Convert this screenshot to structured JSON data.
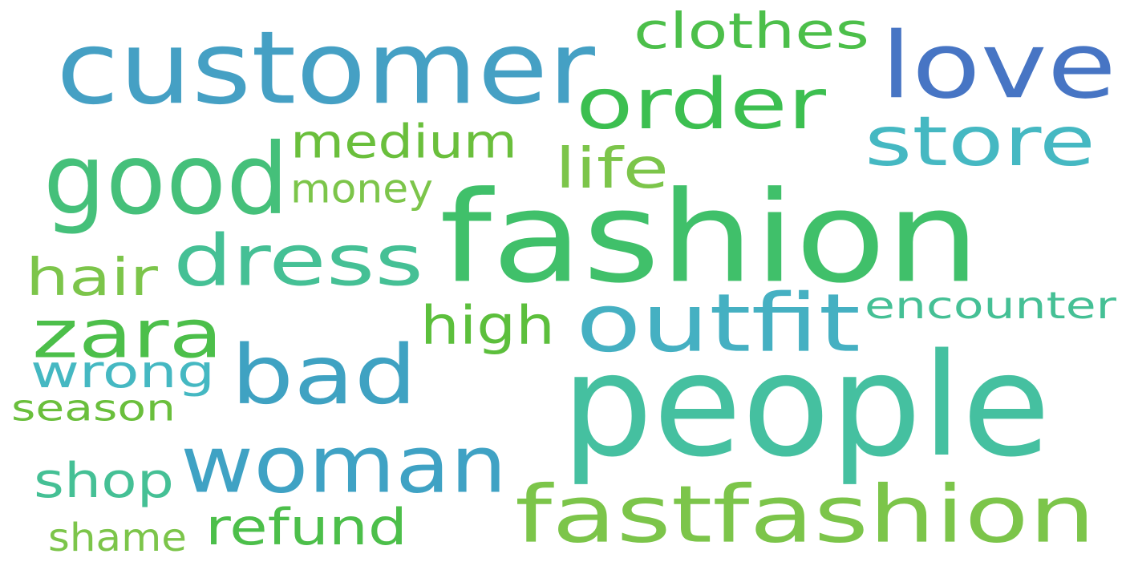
{
  "words": [
    {
      "text": "customer",
      "color": "#45a0c4"
    },
    {
      "text": "love",
      "color": "#4775c4"
    },
    {
      "text": "clothes",
      "color": "#4cbf4a"
    },
    {
      "text": "order",
      "color": "#3cbf50"
    },
    {
      "text": "good",
      "color": "#45c07a"
    },
    {
      "text": "medium",
      "color": "#6abf3c"
    },
    {
      "text": "store",
      "color": "#45b8c2"
    },
    {
      "text": "fashion",
      "color": "#40c06a"
    },
    {
      "text": "life",
      "color": "#7cc54a"
    },
    {
      "text": "money",
      "color": "#7cc54a"
    },
    {
      "text": "dress",
      "color": "#45c095"
    },
    {
      "text": "hair",
      "color": "#7cc54a"
    },
    {
      "text": "zara",
      "color": "#4cbf4a"
    },
    {
      "text": "outfit",
      "color": "#45b0c2"
    },
    {
      "text": "encounter",
      "color": "#45c095"
    },
    {
      "text": "high",
      "color": "#5cbf3c"
    },
    {
      "text": "bad",
      "color": "#3fa2c2"
    },
    {
      "text": "wrong",
      "color": "#45b8c2"
    },
    {
      "text": "people",
      "color": "#45c0a0"
    },
    {
      "text": "season",
      "color": "#6abf3c"
    },
    {
      "text": "woman",
      "color": "#3fa2c4"
    },
    {
      "text": "shop",
      "color": "#45c095"
    },
    {
      "text": "fastfashion",
      "color": "#7cc54a"
    },
    {
      "text": "refund",
      "color": "#4cbf4a"
    },
    {
      "text": "shame",
      "color": "#7cc54a"
    }
  ]
}
